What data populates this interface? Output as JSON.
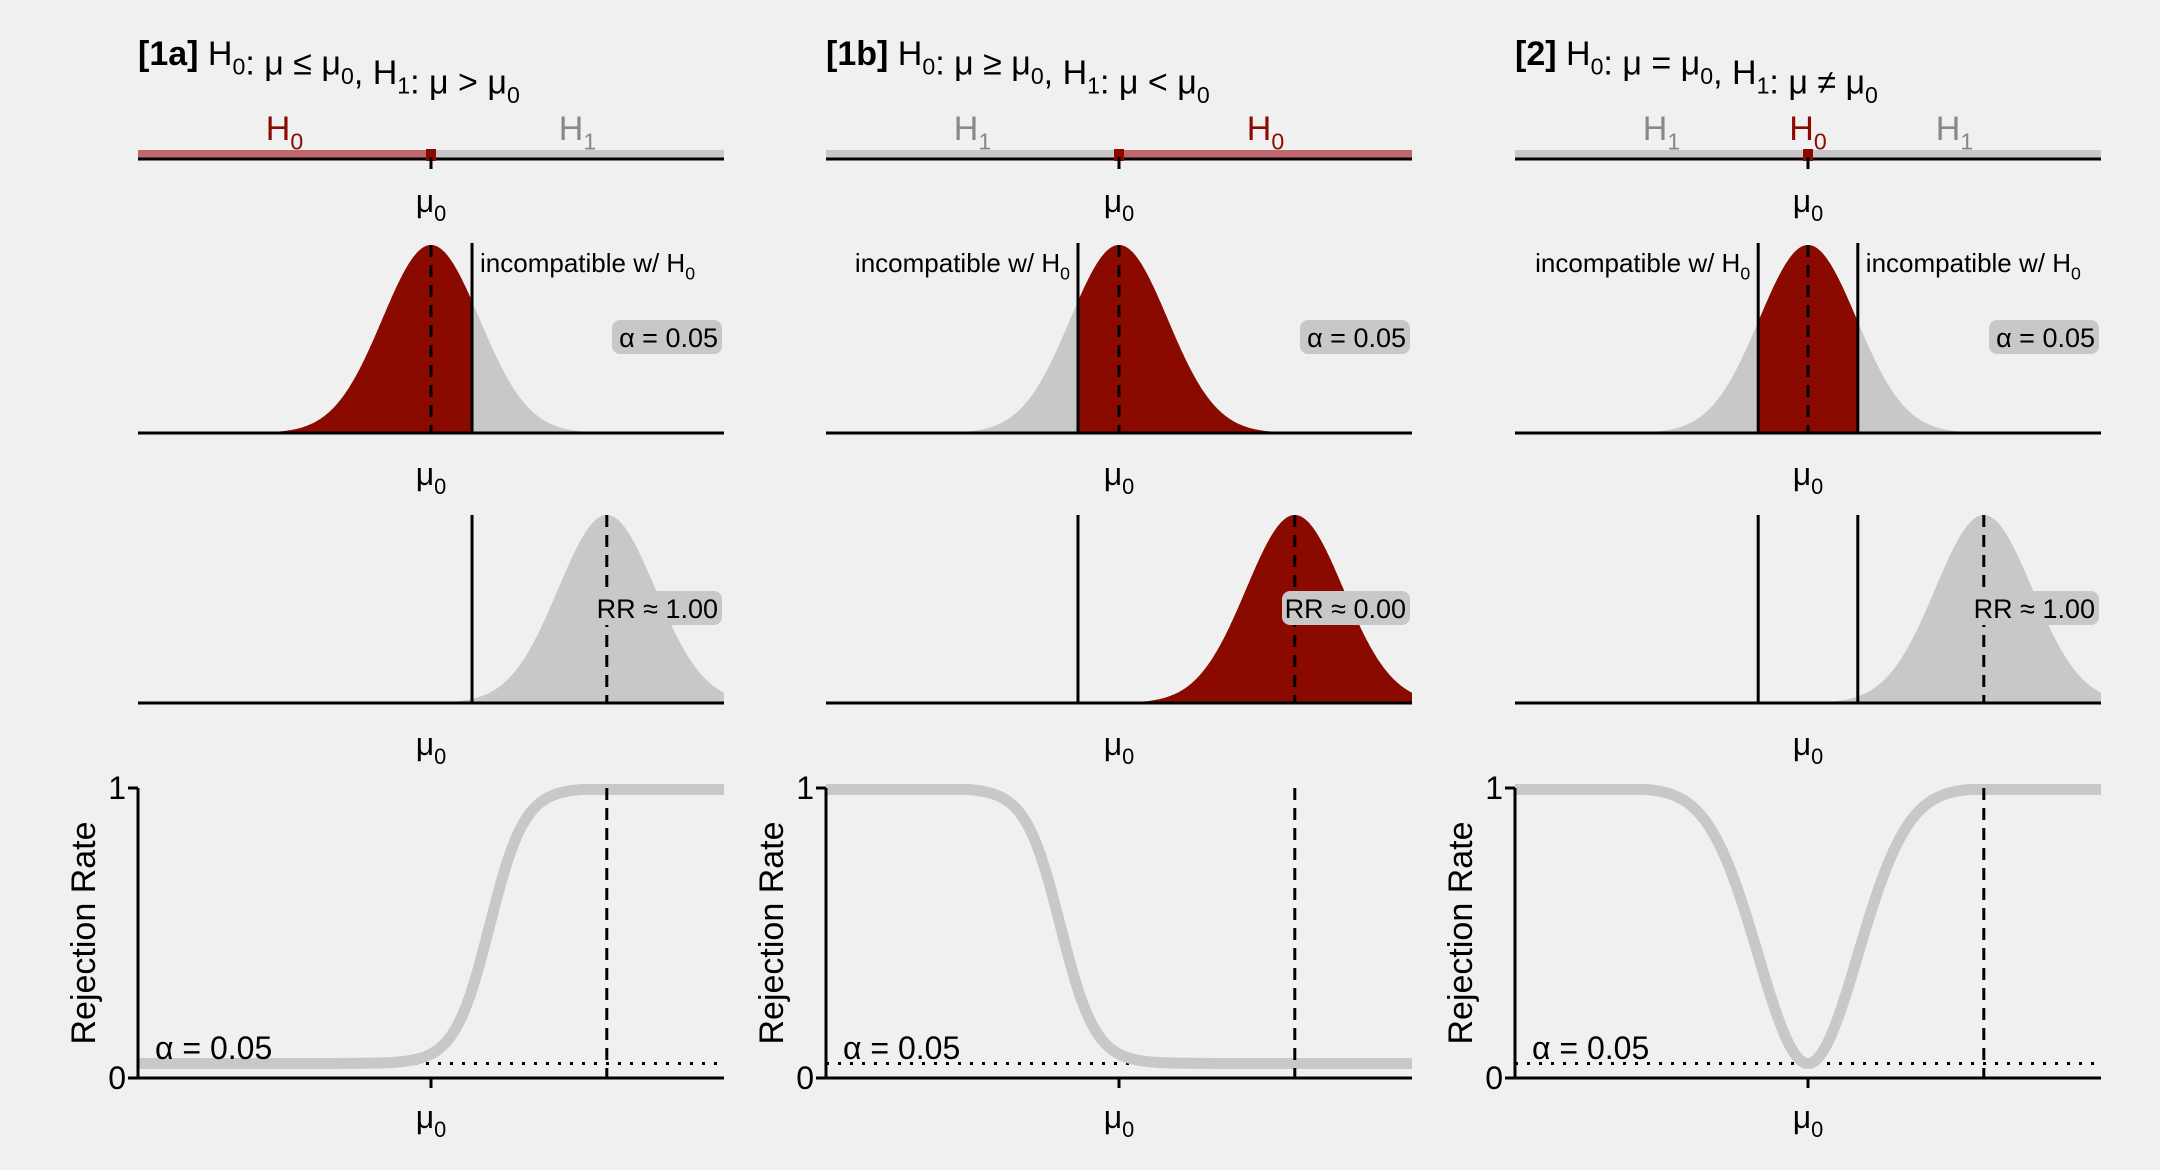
{
  "colors": {
    "background": "#f0f0f0",
    "null_red": "#8b0a00",
    "null_bar": "#c0676b",
    "alt_gray": "#c8c8c8",
    "label_gray": "#888888",
    "badge_gray": "#c8c8c8",
    "axis": "#000000"
  },
  "strings": {
    "mu0": "μ",
    "sub0": "0",
    "sub1": "1",
    "H": "H",
    "incompatible": "incompatible w/ H",
    "ylabel": "Rejection Rate",
    "alpha_line": "α = 0.05",
    "y0": "0",
    "y1": "1"
  },
  "panels": [
    {
      "id": "1a",
      "tag": "[1a]",
      "h0_text": "H",
      "h0_rel": ": μ ≤ μ",
      "h1_rel": ": μ > μ",
      "bar_segments": [
        {
          "from": 0,
          "to": 0.5,
          "type": "null"
        },
        {
          "from": 0.5,
          "to": 1,
          "type": "alt"
        }
      ],
      "bar_labels": [
        {
          "pos": 0.25,
          "type": "null"
        },
        {
          "pos": 0.75,
          "type": "alt"
        }
      ],
      "bar_marker": 0.5,
      "crit": [
        0.57
      ],
      "tails": "right",
      "alpha_badge": "α = 0.05",
      "alt_mean": 0.8,
      "rr_badge": "RR ≈ 1.00",
      "alt_in_null": false,
      "power": "right"
    },
    {
      "id": "1b",
      "tag": "[1b]",
      "h0_text": "H",
      "h0_rel": ": μ ≥ μ",
      "h1_rel": ": μ < μ",
      "bar_segments": [
        {
          "from": 0,
          "to": 0.5,
          "type": "alt"
        },
        {
          "from": 0.5,
          "to": 1,
          "type": "null"
        }
      ],
      "bar_labels": [
        {
          "pos": 0.25,
          "type": "alt"
        },
        {
          "pos": 0.75,
          "type": "null"
        }
      ],
      "bar_marker": 0.5,
      "crit": [
        0.43
      ],
      "tails": "left",
      "alpha_badge": "α = 0.05",
      "alt_mean": 0.8,
      "rr_badge": "RR ≈ 0.00",
      "alt_in_null": true,
      "power": "left"
    },
    {
      "id": "2",
      "tag": "[2]",
      "h0_text": "H",
      "h0_rel": ": μ = μ",
      "h1_rel": ": μ ≠ μ",
      "bar_segments": [
        {
          "from": 0,
          "to": 1,
          "type": "alt"
        }
      ],
      "bar_labels": [
        {
          "pos": 0.25,
          "type": "alt"
        },
        {
          "pos": 0.5,
          "type": "null"
        },
        {
          "pos": 0.75,
          "type": "alt"
        }
      ],
      "bar_marker": 0.5,
      "crit": [
        0.415,
        0.585
      ],
      "tails": "both",
      "alpha_badge": "α = 0.05",
      "alt_mean": 0.8,
      "rr_badge": "RR ≈ 1.00",
      "alt_in_null": false,
      "power": "both"
    }
  ]
}
